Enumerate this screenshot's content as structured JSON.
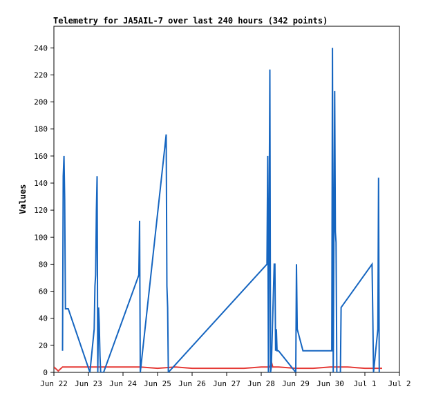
{
  "chart_data": {
    "type": "line",
    "title": "Telemetry for JA5AIL-7 over last 240 hours (342 points)",
    "ylabel": "Values",
    "xlabel": "",
    "ylim": [
      0,
      256
    ],
    "xlim": [
      "Jun 22",
      "Jul 2"
    ],
    "y_ticks": [
      0,
      20,
      40,
      60,
      80,
      100,
      120,
      140,
      160,
      180,
      200,
      220,
      240
    ],
    "x_ticks": [
      "Jun 22",
      "Jun 23",
      "Jun 24",
      "Jun 25",
      "Jun 26",
      "Jun 27",
      "Jun 28",
      "Jun 29",
      "Jun 30",
      "Jul 1",
      "Jul 2"
    ],
    "grid": false,
    "series": [
      {
        "color": "#1565c0",
        "x": [
          "Jun 22 06:00",
          "Jun 22 06:30",
          "Jun 22 07:00",
          "Jun 22 07:30",
          "Jun 22 08:00",
          "Jun 22 08:30",
          "Jun 22 09:00",
          "Jun 22 09:30",
          "Jun 22 10:00",
          "Jun 23 01:00",
          "Jun 23 04:00",
          "Jun 23 04:30",
          "Jun 23 05:00",
          "Jun 23 05:30",
          "Jun 23 06:00",
          "Jun 23 06:30",
          "Jun 23 07:00",
          "Jun 23 07:30",
          "Jun 23 08:00",
          "Jun 23 08:30",
          "Jun 23 09:00",
          "Jun 23 09:30",
          "Jun 23 10:00",
          "Jun 23 10:30",
          "Jun 24 11:00",
          "Jun 24 11:30",
          "Jun 24 12:00",
          "Jun 25 06:00",
          "Jun 25 06:30",
          "Jun 25 07:00",
          "Jun 25 07:30",
          "Jun 28 04:00",
          "Jun 28 04:30",
          "Jun 28 05:00",
          "Jun 28 06:00",
          "Jun 28 06:30",
          "Jun 28 07:00",
          "Jun 28 09:00",
          "Jun 28 09:30",
          "Jun 28 10:00",
          "Jun 28 10:30",
          "Jun 28 11:00",
          "Jun 28 11:30",
          "Jun 28 12:00",
          "Jun 29 00:00",
          "Jun 29 00:30",
          "Jun 29 01:00",
          "Jun 29 05:00",
          "Jun 30 01:00",
          "Jun 30 01:30",
          "Jun 30 02:00",
          "Jun 30 03:00",
          "Jun 30 03:30",
          "Jun 30 04:00",
          "Jun 30 04:30",
          "Jun 30 05:00",
          "Jun 30 07:00",
          "Jun 30 07:30",
          "Jul 1 05:00",
          "Jul 1 05:30",
          "Jul 1 06:00",
          "Jul 1 09:00",
          "Jul 1 09:30",
          "Jul 1 10:00"
        ],
        "values": [
          16,
          145,
          160,
          128,
          47,
          47,
          47,
          47,
          47,
          0,
          32,
          64,
          72,
          120,
          145,
          0,
          48,
          36,
          12,
          0,
          0,
          0,
          0,
          0,
          72,
          112,
          0,
          176,
          64,
          48,
          0,
          80,
          160,
          0,
          224,
          0,
          4,
          80,
          80,
          16,
          32,
          16,
          16,
          16,
          0,
          80,
          32,
          16,
          16,
          240,
          0,
          208,
          104,
          96,
          0,
          0,
          0,
          48,
          80,
          40,
          0,
          32,
          144,
          0
        ]
      },
      {
        "color": "#e53935",
        "x": [
          "Jun 22 00:00",
          "Jun 22 03:00",
          "Jun 22 06:00",
          "Jun 23 00:00",
          "Jun 24 00:00",
          "Jun 24 12:00",
          "Jun 25 00:00",
          "Jun 25 12:00",
          "Jun 26 00:00",
          "Jun 27 00:00",
          "Jun 27 12:00",
          "Jun 28 00:00",
          "Jun 28 06:00",
          "Jun 28 07:00",
          "Jun 28 08:00",
          "Jun 28 12:00",
          "Jun 29 00:00",
          "Jun 29 12:00",
          "Jun 30 00:00",
          "Jun 30 12:00",
          "Jul 1 00:00",
          "Jul 1 12:00"
        ],
        "values": [
          4,
          1,
          4,
          4,
          4,
          4,
          3,
          4,
          3,
          3,
          3,
          4,
          4,
          8,
          4,
          4,
          3,
          3,
          4,
          4,
          3,
          3
        ]
      }
    ]
  }
}
